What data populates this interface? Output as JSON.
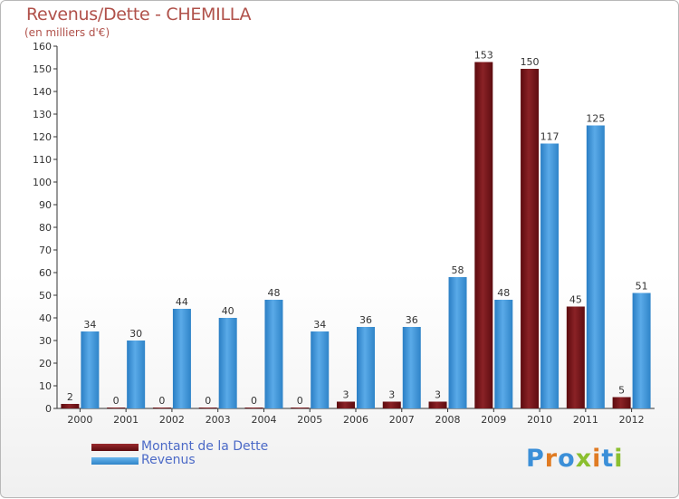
{
  "title": "Revenus/Dette - CHEMILLA",
  "subtitle": "(en milliers d'€)",
  "logo_text": "Proxiti",
  "colors": {
    "dette": "#7a1418",
    "revenus": "#3b95dc",
    "title": "#b0514a",
    "legend_text": "#4c6ac7"
  },
  "chart_data": {
    "type": "bar",
    "title": "Revenus/Dette - CHEMILLA",
    "ylabel": "(en milliers d'€)",
    "categories": [
      "2000",
      "2001",
      "2002",
      "2003",
      "2004",
      "2005",
      "2006",
      "2007",
      "2008",
      "2009",
      "2010",
      "2011",
      "2012"
    ],
    "series": [
      {
        "name": "Montant de la Dette",
        "values": [
          2,
          0,
          0,
          0,
          0,
          0,
          3,
          3,
          3,
          153,
          150,
          45,
          5
        ]
      },
      {
        "name": "Revenus",
        "values": [
          34,
          30,
          44,
          40,
          48,
          34,
          36,
          36,
          58,
          48,
          117,
          125,
          51
        ]
      }
    ],
    "ylim": [
      0,
      160
    ],
    "yticks": [
      0,
      10,
      20,
      30,
      40,
      50,
      60,
      70,
      80,
      90,
      100,
      110,
      120,
      130,
      140,
      150,
      160
    ],
    "grid": false,
    "legend": "bottom-left"
  }
}
